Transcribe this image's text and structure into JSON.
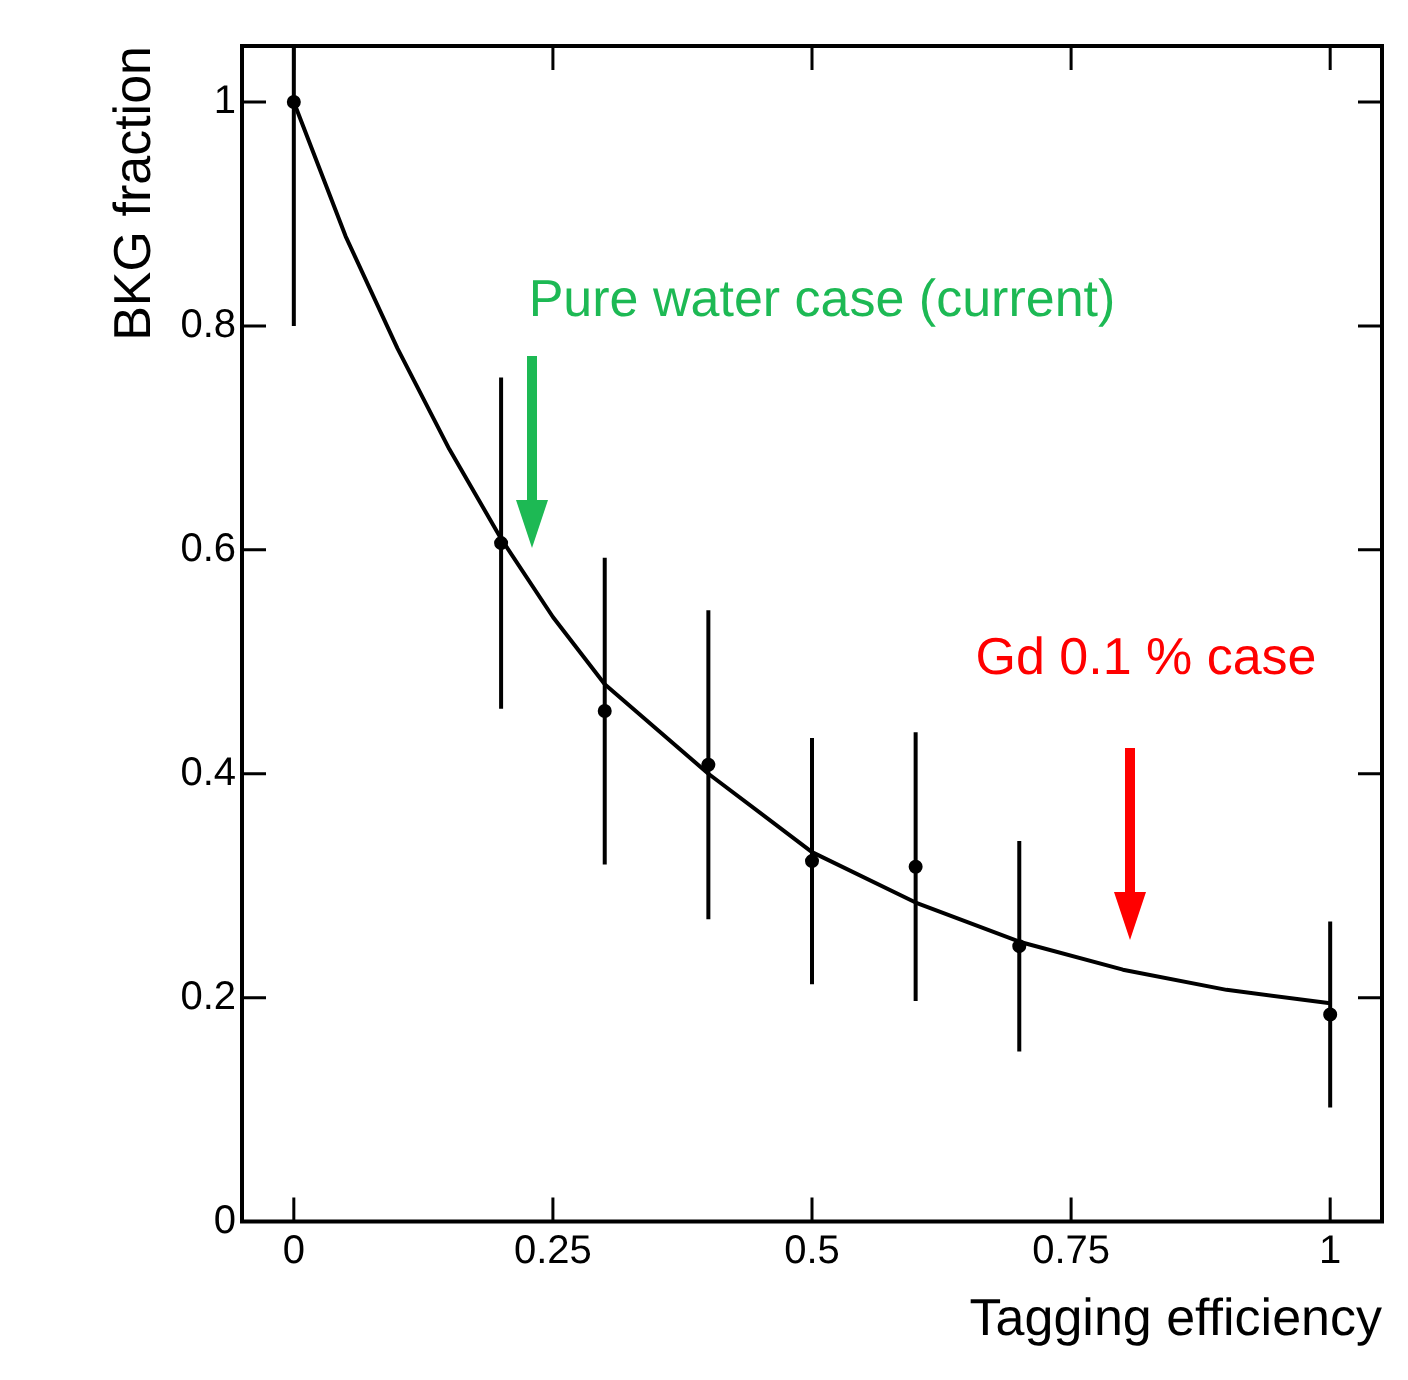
{
  "chart_data": {
    "type": "scatter",
    "xlabel": "Tagging efficiency",
    "ylabel": "BKG fraction",
    "xlim": [
      -0.05,
      1.05
    ],
    "ylim": [
      0,
      1.05
    ],
    "xticks": [
      0,
      0.25,
      0.5,
      0.75,
      1
    ],
    "yticks": [
      0,
      0.2,
      0.4,
      0.6,
      0.8,
      1
    ],
    "grid": false,
    "legend": false,
    "marker": "circle",
    "series": [
      {
        "type": "scatter",
        "color": "#000000",
        "x": [
          0,
          0.2,
          0.3,
          0.4,
          0.5,
          0.6,
          0.7,
          1.0
        ],
        "values": [
          1.0,
          0.606,
          0.456,
          0.408,
          0.322,
          0.317,
          0.246,
          0.185
        ],
        "errors": [
          0.2,
          0.148,
          0.137,
          0.138,
          0.11,
          0.12,
          0.094,
          0.083
        ]
      },
      {
        "type": "line",
        "color": "#000000",
        "marker": "none",
        "x": [
          0,
          0.05,
          0.1,
          0.15,
          0.2,
          0.25,
          0.3,
          0.35,
          0.4,
          0.5,
          0.6,
          0.7,
          0.8,
          0.9,
          1.0
        ],
        "values": [
          1.0,
          0.88,
          0.78,
          0.69,
          0.61,
          0.54,
          0.48,
          0.44,
          0.4,
          0.33,
          0.285,
          0.25,
          0.225,
          0.207,
          0.195
        ]
      }
    ],
    "annotations": [
      "Pure water case (current)",
      "Gd 0.1 % case"
    ]
  }
}
